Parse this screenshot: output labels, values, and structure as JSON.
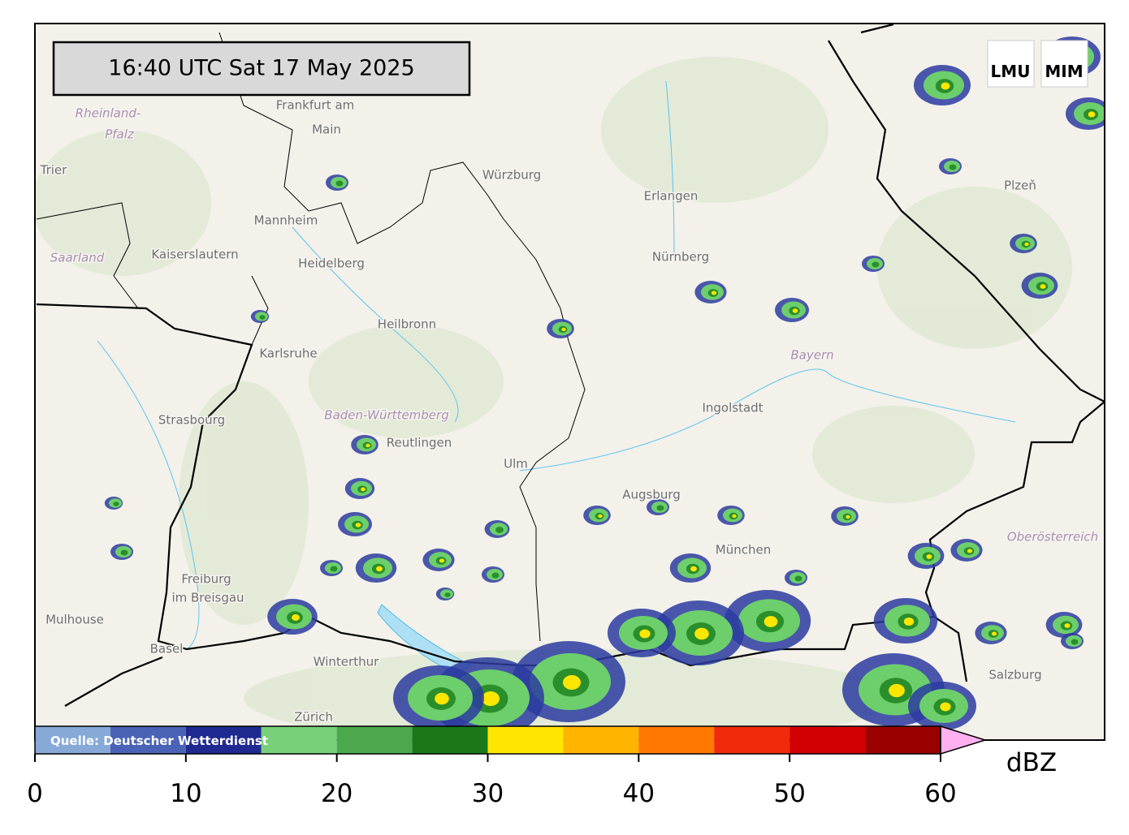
{
  "timestamp": "16:40 UTC  Sat 17 May 2025",
  "logos": [
    "LMU",
    "MIM"
  ],
  "places": [
    "Frankfurt am",
    "Main",
    "Rheinland-",
    "Pfalz",
    "Trier",
    "Würzburg",
    "Erlangen",
    "Mannheim",
    "Kaiserslautern",
    "Saarland",
    "Heidelberg",
    "Nürnberg",
    "Plzeň",
    "Heilbronn",
    "Karlsruhe",
    "Bayern",
    "Ingolstadt",
    "Strasbourg",
    "Baden-Württemberg",
    "Reutlingen",
    "Ulm",
    "Augsburg",
    "München",
    "Oberösterreich",
    "Freiburg",
    "im Breisgau",
    "Mulhouse",
    "Basel",
    "Winterthur",
    "Zürich",
    "Salzburg"
  ],
  "colorbar": {
    "label": "dBZ",
    "source": "Quelle: Deutscher Wetterdienst",
    "bounds": [
      0,
      5,
      10,
      15,
      20,
      25,
      30,
      35,
      40,
      45,
      50,
      55,
      60
    ],
    "colors": [
      "#86a9d8",
      "#4b63b6",
      "#1f2a90",
      "#78d078",
      "#4ca84c",
      "#1a781a",
      "#ffe600",
      "#ffb400",
      "#ff7800",
      "#f02a0a",
      "#d20000",
      "#9a0000"
    ],
    "extend_color": "#ffb0f0",
    "ticks": [
      0,
      10,
      20,
      30,
      40,
      50,
      60
    ]
  }
}
